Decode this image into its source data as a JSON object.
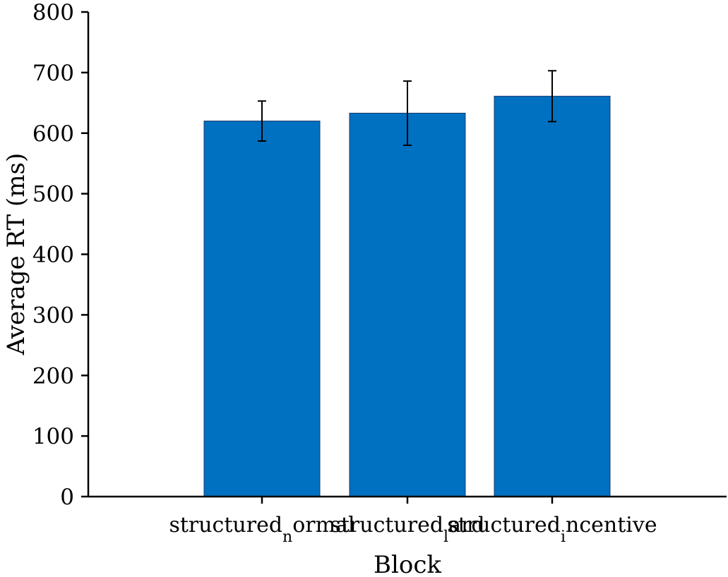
{
  "chart_data": {
    "type": "bar",
    "title": "",
    "xlabel": "Block",
    "ylabel": "Average RT (ms)",
    "ylim": [
      0,
      800
    ],
    "yticks": [
      0,
      100,
      200,
      300,
      400,
      500,
      600,
      700,
      800
    ],
    "categories": [
      {
        "main": "structured",
        "sub": "n",
        "rest": "ormal"
      },
      {
        "main": "structured",
        "sub": "l",
        "rest": "ard"
      },
      {
        "main": "structured",
        "sub": "i",
        "rest": "ncentive"
      }
    ],
    "values": [
      620,
      633,
      661
    ],
    "errors": [
      33,
      53,
      42
    ],
    "bar_color": "#0070c0",
    "grid": false,
    "legend": "none"
  }
}
